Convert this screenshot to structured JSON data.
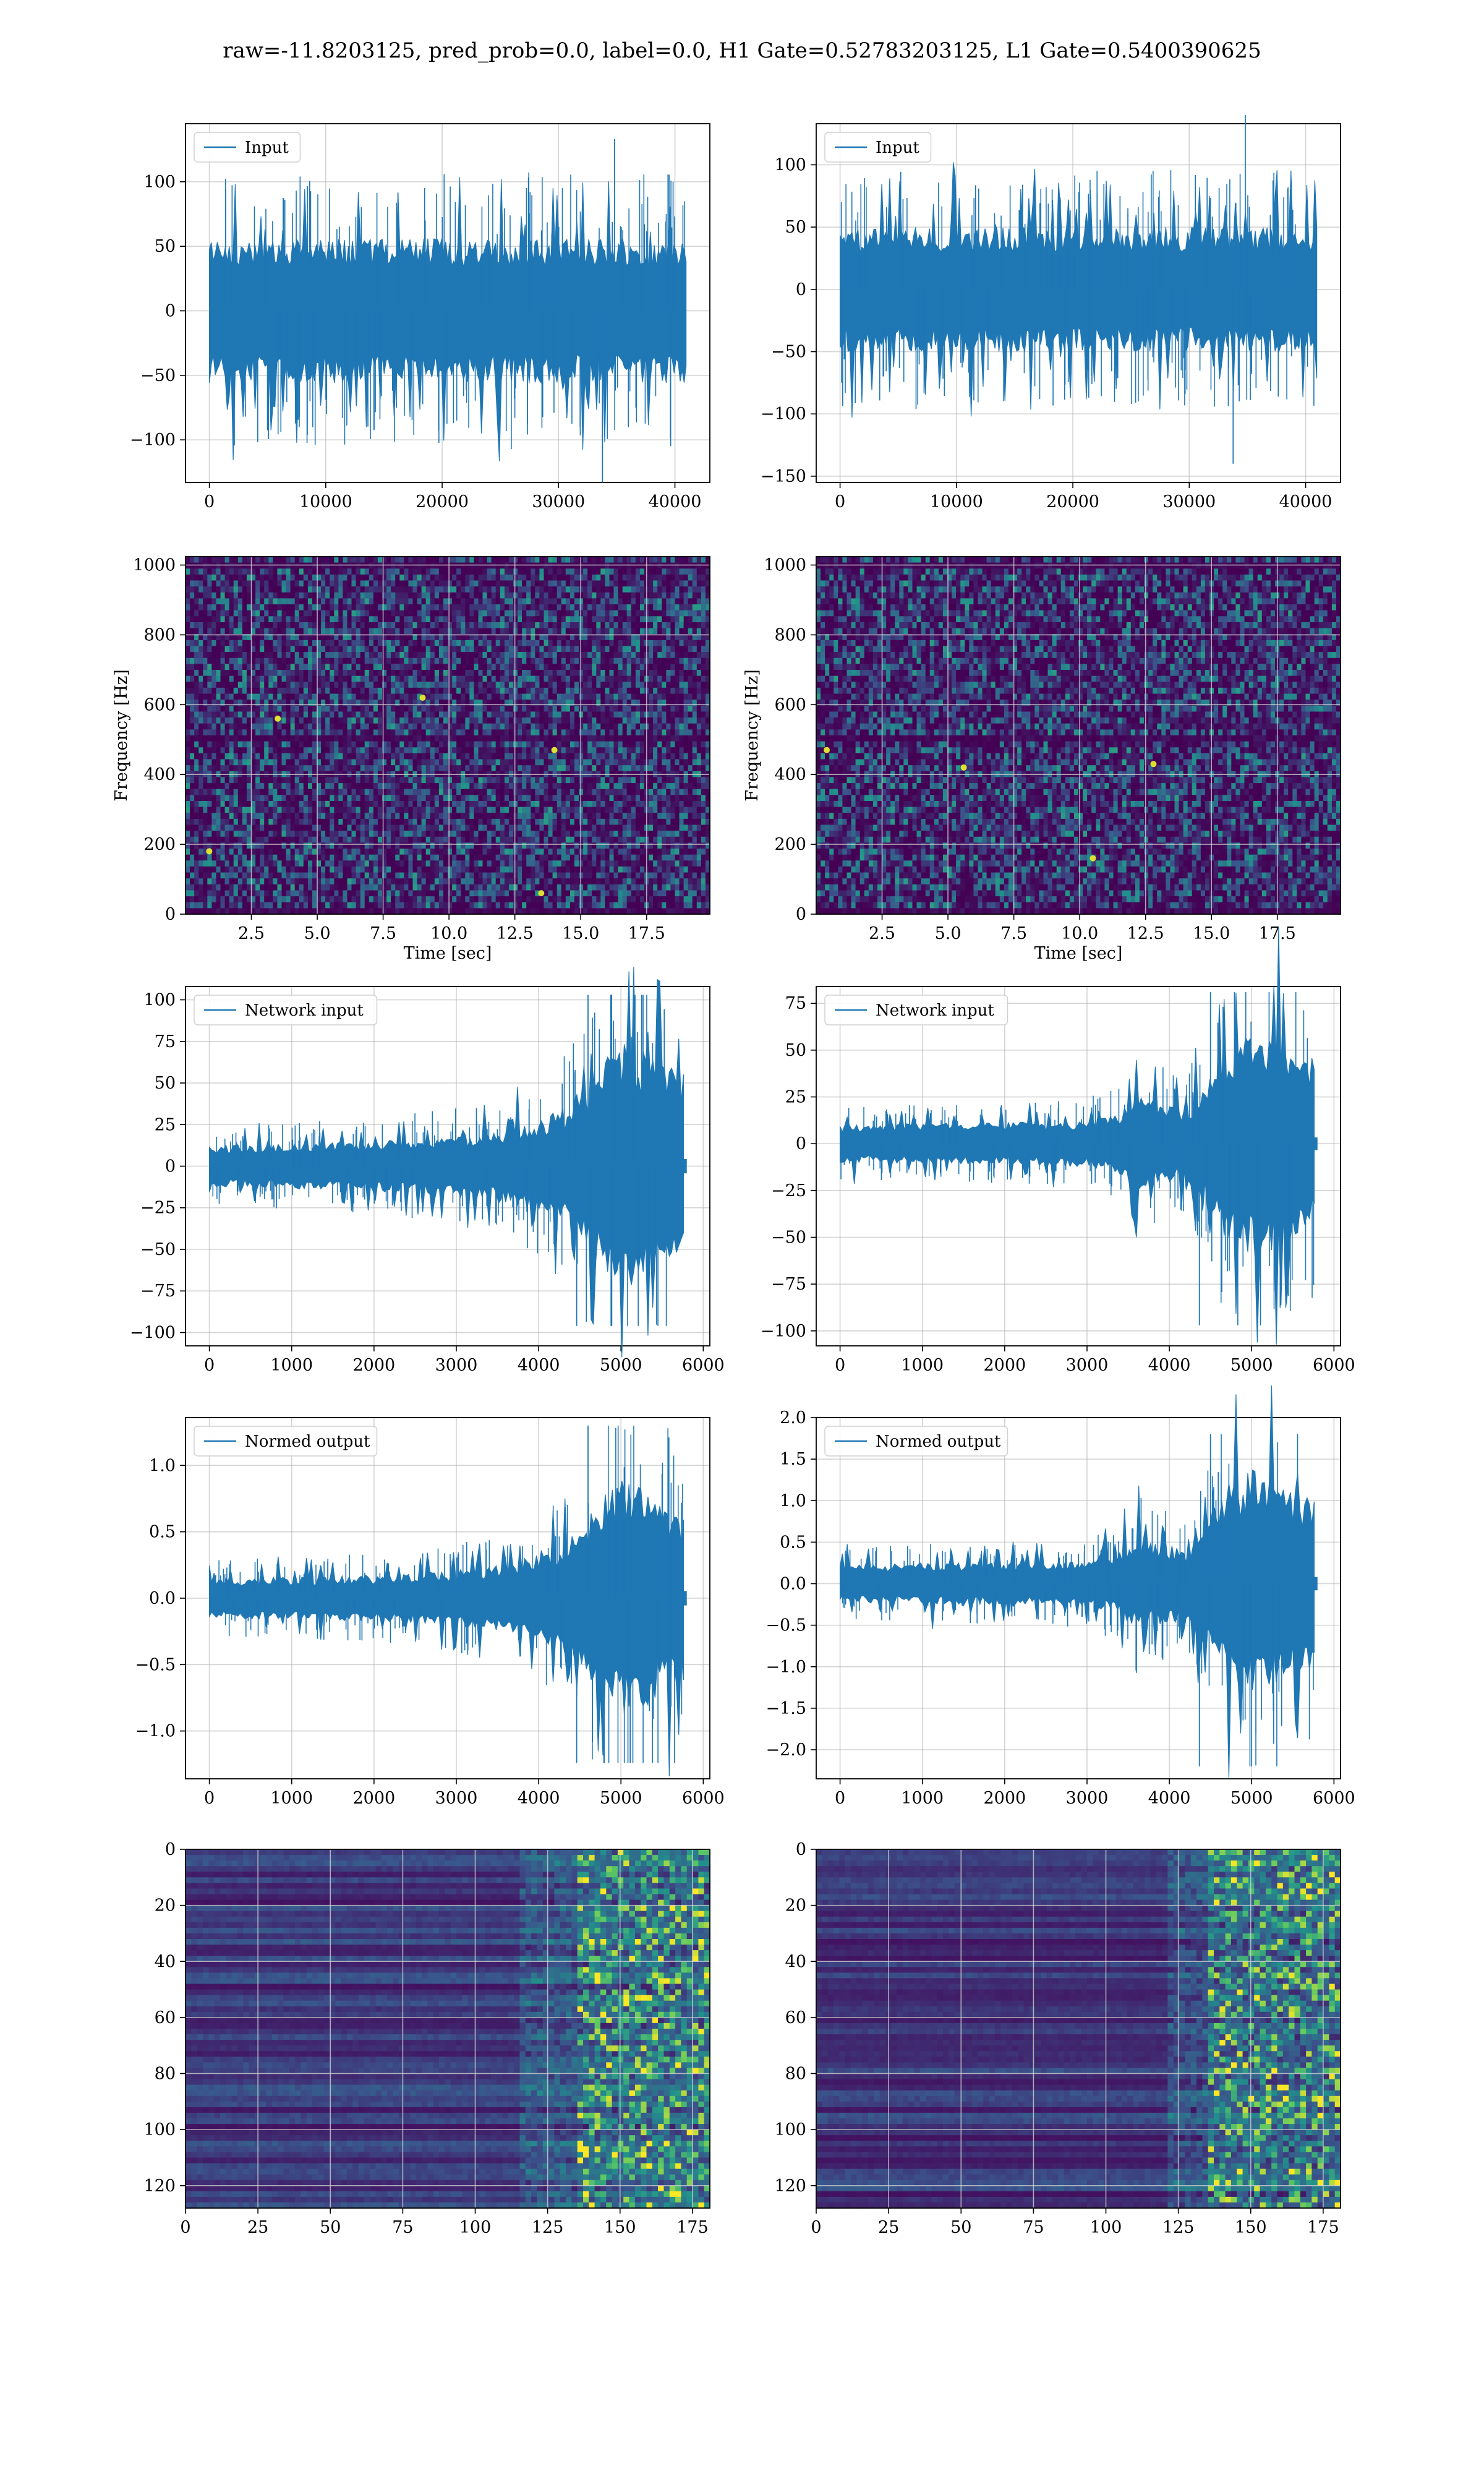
{
  "figure": {
    "suptitle": "raw=-11.8203125, pred_prob=0.0, label=0.0, H1 Gate=0.52783203125, L1 Gate=0.5400390625"
  },
  "colors": {
    "line": "#1f77b4",
    "grid": "#b0b0b0",
    "viridis_low": "#440154",
    "viridis_mid": "#21918c",
    "viridis_high": "#fde725"
  },
  "chart_data": [
    {
      "id": "input-h1",
      "type": "line",
      "legend": "Input",
      "legend_position": "upper left",
      "grid": true,
      "xlim": [
        -2050,
        43000
      ],
      "ylim": [
        -133,
        145
      ],
      "xticks": [
        0,
        10000,
        20000,
        30000,
        40000
      ],
      "yticks": [
        -100,
        -50,
        0,
        50,
        100
      ],
      "x_range": [
        0,
        40960
      ],
      "amplitude_typical": 45,
      "amplitude_peak": 133,
      "envelope_points": 240,
      "shape": "stationary"
    },
    {
      "id": "input-l1",
      "type": "line",
      "legend": "Input",
      "legend_position": "upper left",
      "grid": true,
      "xlim": [
        -2050,
        43000
      ],
      "ylim": [
        -155,
        133
      ],
      "xticks": [
        0,
        10000,
        20000,
        30000,
        40000
      ],
      "yticks": [
        -150,
        -100,
        -50,
        0,
        50,
        100
      ],
      "x_range": [
        0,
        40960
      ],
      "amplitude_typical": 40,
      "amplitude_peak": 140,
      "envelope_points": 240,
      "shape": "stationary"
    },
    {
      "id": "spectrogram-h1",
      "type": "heatmap",
      "colormap": "viridis",
      "grid": true,
      "xlabel": "Time [sec]",
      "ylabel": "Frequency [Hz]",
      "xlim": [
        0,
        19.9
      ],
      "ylim": [
        0,
        1024
      ],
      "xticks": [
        2.5,
        5.0,
        7.5,
        10.0,
        12.5,
        15.0,
        17.5
      ],
      "xticklabels": [
        "2.5",
        "5.0",
        "7.5",
        "10.0",
        "12.5",
        "15.0",
        "17.5"
      ],
      "yticks": [
        0,
        200,
        400,
        600,
        800,
        1000
      ],
      "grid_cells": [
        120,
        60
      ],
      "dark_bands_hz": [
        10,
        500,
        1000
      ],
      "bright_spots": [
        [
          3.5,
          560
        ],
        [
          9.0,
          620
        ],
        [
          13.5,
          60
        ],
        [
          0.9,
          180
        ],
        [
          14.0,
          470
        ]
      ]
    },
    {
      "id": "spectrogram-l1",
      "type": "heatmap",
      "colormap": "viridis",
      "grid": true,
      "xlabel": "Time [sec]",
      "ylabel": "Frequency [Hz]",
      "xlim": [
        0,
        19.9
      ],
      "ylim": [
        0,
        1024
      ],
      "xticks": [
        2.5,
        5.0,
        7.5,
        10.0,
        12.5,
        15.0,
        17.5
      ],
      "xticklabels": [
        "2.5",
        "5.0",
        "7.5",
        "10.0",
        "12.5",
        "15.0",
        "17.5"
      ],
      "yticks": [
        0,
        200,
        400,
        600,
        800,
        1000
      ],
      "grid_cells": [
        120,
        60
      ],
      "dark_bands_hz": [
        10,
        500,
        1000
      ],
      "bright_spots": [
        [
          0.4,
          470
        ],
        [
          12.8,
          430
        ],
        [
          10.5,
          160
        ],
        [
          5.6,
          420
        ]
      ]
    },
    {
      "id": "network-input-h1",
      "type": "line",
      "legend": "Network input",
      "legend_position": "upper left",
      "grid": true,
      "xlim": [
        -290,
        6080
      ],
      "ylim": [
        -108,
        108
      ],
      "xticks": [
        0,
        1000,
        2000,
        3000,
        4000,
        5000,
        6000
      ],
      "yticks": [
        -100,
        -75,
        -50,
        -25,
        0,
        25,
        50,
        75,
        100
      ],
      "x_range": [
        0,
        5760
      ],
      "tail_end": 5800,
      "envelope": [
        [
          0,
          10
        ],
        [
          1000,
          11
        ],
        [
          2000,
          12
        ],
        [
          3000,
          15
        ],
        [
          3500,
          17
        ],
        [
          4000,
          22
        ],
        [
          4300,
          28
        ],
        [
          4600,
          40
        ],
        [
          4800,
          55
        ],
        [
          5000,
          60
        ],
        [
          5300,
          55
        ],
        [
          5600,
          48
        ],
        [
          5760,
          45
        ]
      ],
      "peak_max": 103,
      "peak_min": -96,
      "envelope_points": 200
    },
    {
      "id": "network-input-l1",
      "type": "line",
      "legend": "Network input",
      "legend_position": "upper left",
      "grid": true,
      "xlim": [
        -290,
        6080
      ],
      "ylim": [
        -108,
        84
      ],
      "xticks": [
        0,
        1000,
        2000,
        3000,
        4000,
        5000,
        6000
      ],
      "yticks": [
        -100,
        -75,
        -50,
        -25,
        0,
        25,
        50,
        75
      ],
      "x_range": [
        0,
        5760
      ],
      "tail_end": 5800,
      "envelope": [
        [
          0,
          8
        ],
        [
          1000,
          9
        ],
        [
          2000,
          9
        ],
        [
          3000,
          10
        ],
        [
          3400,
          14
        ],
        [
          3600,
          20
        ],
        [
          3900,
          18
        ],
        [
          4200,
          15
        ],
        [
          4500,
          30
        ],
        [
          4700,
          45
        ],
        [
          5000,
          50
        ],
        [
          5300,
          45
        ],
        [
          5600,
          40
        ],
        [
          5760,
          38
        ]
      ],
      "peak_max": 81,
      "peak_min": -97,
      "envelope_points": 200
    },
    {
      "id": "normed-output-h1",
      "type": "line",
      "legend": "Normed output",
      "legend_position": "upper left",
      "grid": true,
      "xlim": [
        -290,
        6080
      ],
      "ylim": [
        -1.36,
        1.36
      ],
      "xticks": [
        0,
        1000,
        2000,
        3000,
        4000,
        5000,
        6000
      ],
      "yticks": [
        -1.0,
        -0.5,
        0.0,
        0.5,
        1.0
      ],
      "yticklabels": [
        "−1.0",
        "−0.5",
        "0.0",
        "0.5",
        "1.0"
      ],
      "x_range": [
        0,
        5760
      ],
      "tail_end": 5800,
      "envelope": [
        [
          0,
          0.12
        ],
        [
          1000,
          0.13
        ],
        [
          2000,
          0.14
        ],
        [
          3000,
          0.17
        ],
        [
          3500,
          0.2
        ],
        [
          4000,
          0.26
        ],
        [
          4300,
          0.33
        ],
        [
          4600,
          0.48
        ],
        [
          4800,
          0.65
        ],
        [
          5000,
          0.72
        ],
        [
          5300,
          0.66
        ],
        [
          5600,
          0.58
        ],
        [
          5760,
          0.54
        ]
      ],
      "peak_max": 1.3,
      "peak_min": -1.24,
      "envelope_points": 200
    },
    {
      "id": "normed-output-l1",
      "type": "line",
      "legend": "Normed output",
      "legend_position": "upper left",
      "grid": true,
      "xlim": [
        -290,
        6080
      ],
      "ylim": [
        -2.35,
        2.0
      ],
      "xticks": [
        0,
        1000,
        2000,
        3000,
        4000,
        5000,
        6000
      ],
      "yticks": [
        -2.0,
        -1.5,
        -1.0,
        -0.5,
        0.0,
        0.5,
        1.0,
        1.5,
        2.0
      ],
      "yticklabels": [
        "−2.0",
        "−1.5",
        "−1.0",
        "−0.5",
        "0.0",
        "0.5",
        "1.0",
        "1.5",
        "2.0"
      ],
      "x_range": [
        0,
        5760
      ],
      "tail_end": 5800,
      "envelope": [
        [
          0,
          0.18
        ],
        [
          1000,
          0.2
        ],
        [
          2000,
          0.2
        ],
        [
          3000,
          0.22
        ],
        [
          3400,
          0.3
        ],
        [
          3600,
          0.45
        ],
        [
          3900,
          0.4
        ],
        [
          4200,
          0.33
        ],
        [
          4500,
          0.65
        ],
        [
          4700,
          1.0
        ],
        [
          5000,
          1.1
        ],
        [
          5300,
          1.0
        ],
        [
          5600,
          0.9
        ],
        [
          5760,
          0.85
        ]
      ],
      "peak_max": 1.8,
      "peak_min": -2.2,
      "envelope_points": 200
    },
    {
      "id": "feature-map-h1",
      "type": "heatmap",
      "colormap": "viridis",
      "grid": true,
      "xlim": [
        0,
        181
      ],
      "ylim": [
        128,
        0
      ],
      "xticks": [
        0,
        25,
        50,
        75,
        100,
        125,
        150,
        175
      ],
      "yticks": [
        0,
        20,
        40,
        60,
        80,
        100,
        120
      ],
      "rows": 128,
      "cols": 181,
      "activity_onset": 115,
      "dense_region": [
        135,
        181
      ]
    },
    {
      "id": "feature-map-l1",
      "type": "heatmap",
      "colormap": "viridis",
      "grid": true,
      "xlim": [
        0,
        181
      ],
      "ylim": [
        128,
        0
      ],
      "xticks": [
        0,
        25,
        50,
        75,
        100,
        125,
        150,
        175
      ],
      "yticks": [
        0,
        20,
        40,
        60,
        80,
        100,
        120
      ],
      "rows": 128,
      "cols": 181,
      "activity_onset": 120,
      "dense_region": [
        135,
        181
      ]
    }
  ]
}
